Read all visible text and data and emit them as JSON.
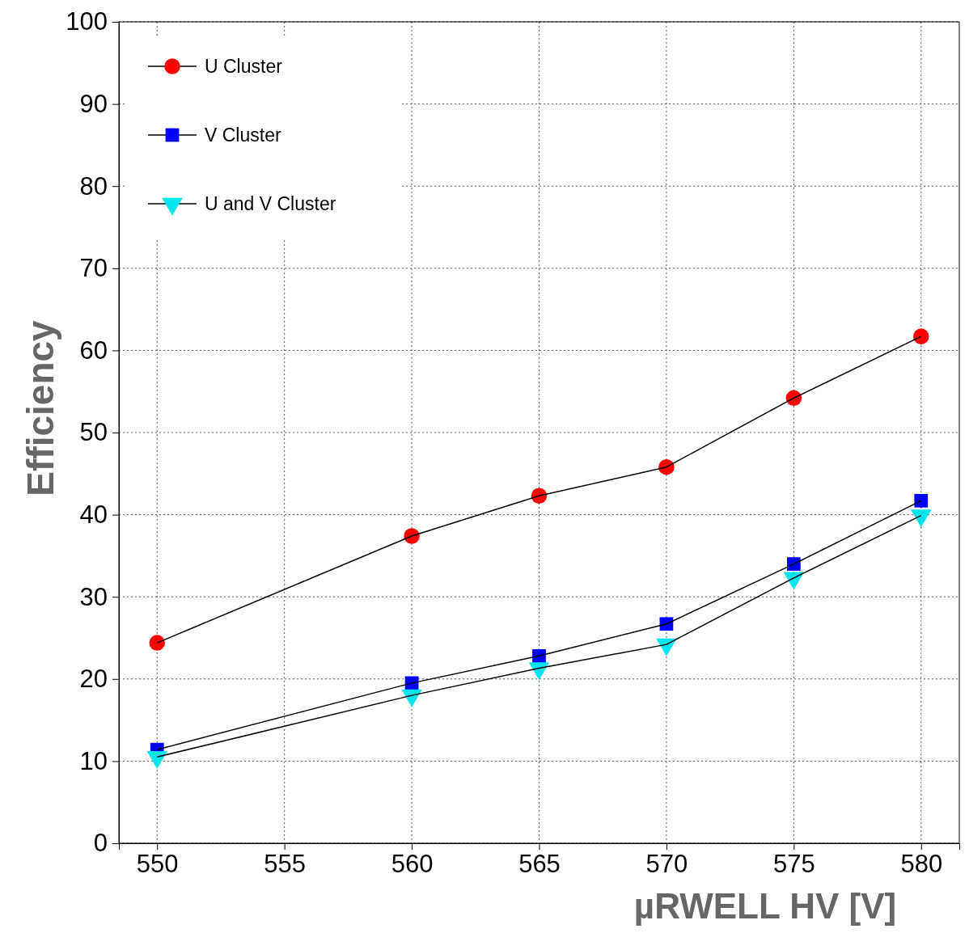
{
  "chart_data": {
    "type": "line",
    "xlabel": "µRWELL HV [V]",
    "ylabel": "Efficiency",
    "x": [
      550,
      560,
      565,
      570,
      575,
      580
    ],
    "series": [
      {
        "name": "U Cluster",
        "color": "#ff0000",
        "marker": "circle",
        "values": [
          24.4,
          37.4,
          42.3,
          45.8,
          54.2,
          61.7
        ]
      },
      {
        "name": "V Cluster",
        "color": "#0000ff",
        "marker": "square",
        "values": [
          11.4,
          19.5,
          22.8,
          26.7,
          34.0,
          41.7
        ]
      },
      {
        "name": "U and V Cluster",
        "color": "#00e5ee",
        "marker": "triangle",
        "values": [
          10.5,
          18.0,
          21.3,
          24.2,
          32.3,
          39.9
        ]
      }
    ],
    "xlim": [
      548.5,
      581.5
    ],
    "xticks": [
      550,
      555,
      560,
      565,
      570,
      575,
      580
    ],
    "ylim": [
      0,
      100
    ],
    "yticks": [
      0,
      10,
      20,
      30,
      40,
      50,
      60,
      70,
      80,
      90,
      100
    ],
    "grid": true,
    "legend": "top left",
    "line_style": "solid"
  }
}
